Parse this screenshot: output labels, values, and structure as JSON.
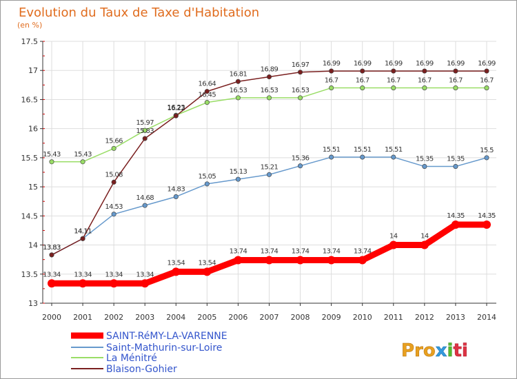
{
  "chart_data": {
    "type": "line",
    "title": "Evolution du Taux de Taxe d'Habitation",
    "subtitle": "(en %)",
    "xlabel": "",
    "ylabel": "",
    "x": [
      "2000",
      "2001",
      "2002",
      "2003",
      "2004",
      "2005",
      "2006",
      "2007",
      "2008",
      "2009",
      "2010",
      "2011",
      "2012",
      "2013",
      "2014"
    ],
    "ylim": [
      13,
      17.5
    ],
    "yticks": [
      "13",
      "13.5",
      "14",
      "14.5",
      "15",
      "15.5",
      "16",
      "16.5",
      "17",
      "17.5"
    ],
    "grid": true,
    "legend_position": "bottom-left",
    "series": [
      {
        "name": "SAINT-RéMY-LA-VARENNE",
        "color": "#ff0000",
        "values": [
          13.34,
          13.34,
          13.34,
          13.34,
          13.54,
          13.54,
          13.74,
          13.74,
          13.74,
          13.74,
          13.74,
          14,
          14,
          14.35,
          14.35
        ],
        "labels": [
          "13.34",
          "13.34",
          "13.34",
          "13.34",
          "13.54",
          "13.54",
          "13.74",
          "13.74",
          "13.74",
          "13.74",
          "13.74",
          "14",
          "14",
          "14.35",
          "14.35"
        ]
      },
      {
        "name": "Saint-Mathurin-sur-Loire",
        "color": "#6699cc",
        "values": [
          13.83,
          14.11,
          14.53,
          14.68,
          14.83,
          15.05,
          15.13,
          15.21,
          15.36,
          15.51,
          15.51,
          15.51,
          15.35,
          15.35,
          15.5
        ],
        "labels": [
          "13.83",
          "14.11",
          "14.53",
          "14.68",
          "14.83",
          "15.05",
          "15.13",
          "15.21",
          "15.36",
          "15.51",
          "15.51",
          "15.51",
          "15.35",
          "15.35",
          "15.5"
        ]
      },
      {
        "name": "La Ménitré",
        "color": "#99dd66",
        "values": [
          15.43,
          15.43,
          15.66,
          15.97,
          16.23,
          16.45,
          16.53,
          16.53,
          16.53,
          16.7,
          16.7,
          16.7,
          16.7,
          16.7,
          16.7
        ],
        "labels": [
          "15.43",
          "15.43",
          "15.66",
          "15.97",
          "16.23",
          "16.45",
          "16.53",
          "16.53",
          "16.53",
          "16.7",
          "16.7",
          "16.7",
          "16.7",
          "16.7",
          "16.7"
        ]
      },
      {
        "name": "Blaison-Gohier",
        "color": "#7a1f1f",
        "values": [
          13.83,
          14.11,
          15.08,
          15.83,
          16.22,
          16.64,
          16.81,
          16.89,
          16.97,
          16.99,
          16.99,
          16.99,
          16.99,
          16.99,
          16.99
        ],
        "labels": [
          "13.83",
          "14.11",
          "15.08",
          "15.83",
          "16.22",
          "16.64",
          "16.81",
          "16.89",
          "16.97",
          "16.99",
          "16.99",
          "16.99",
          "16.99",
          "16.99",
          "16.99"
        ]
      }
    ]
  },
  "logo": {
    "text": "Proxiti",
    "colors": [
      "#e8a020",
      "#3399dd",
      "#55bb33",
      "#dd3344"
    ]
  }
}
